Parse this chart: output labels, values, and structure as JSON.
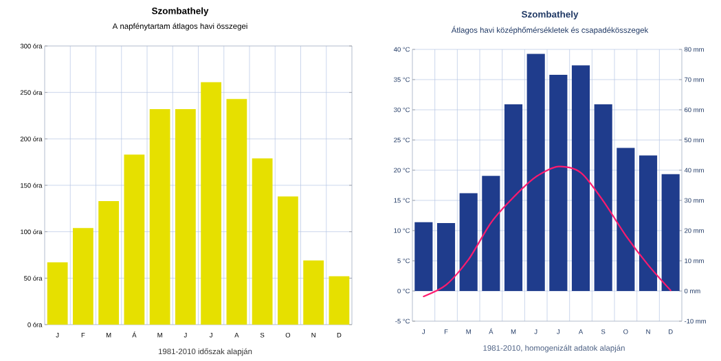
{
  "chart_data": [
    {
      "type": "bar",
      "title": "Szombathely",
      "subtitle": "A napfénytartam átlagos havi összegei",
      "categories": [
        "J",
        "F",
        "M",
        "Á",
        "M",
        "J",
        "J",
        "A",
        "S",
        "O",
        "N",
        "D"
      ],
      "values": [
        67,
        104,
        133,
        183,
        232,
        232,
        261,
        243,
        179,
        138,
        69,
        52
      ],
      "color": "#e6e000",
      "ylim": [
        0,
        300
      ],
      "yticks": [
        {
          "value": 0,
          "label": "0 óra"
        },
        {
          "value": 50,
          "label": "50 óra"
        },
        {
          "value": 100,
          "label": "100 óra"
        },
        {
          "value": 150,
          "label": "150 óra"
        },
        {
          "value": 200,
          "label": "200 óra"
        },
        {
          "value": 250,
          "label": "250 óra"
        },
        {
          "value": 300,
          "label": "300 óra"
        }
      ],
      "grid": true,
      "annotations": [
        "1981-2010 időszak alapján"
      ]
    },
    {
      "type": "bar",
      "title": "Szombathely",
      "subtitle": "Átlagos havi középhőmérsékletek és csapadékösszegek",
      "categories": [
        "J",
        "F",
        "M",
        "Á",
        "M",
        "J",
        "J",
        "A",
        "S",
        "O",
        "N",
        "D"
      ],
      "series": [
        {
          "type": "bar",
          "axis": "y2",
          "color": "#1f3c8c",
          "values": [
            22.8,
            22.5,
            32.4,
            38.1,
            61.8,
            78.5,
            71.6,
            74.7,
            61.8,
            47.4,
            44.9,
            38.7
          ]
        },
        {
          "type": "line",
          "color": "#ff1a6e",
          "values": [
            -0.9,
            1.0,
            5.2,
            11.3,
            15.5,
            18.9,
            20.6,
            19.6,
            14.9,
            9.2,
            4.3,
            0.1
          ]
        }
      ],
      "ylim": [
        -5,
        40
      ],
      "yticks": [
        {
          "value": -5,
          "label": "-5 °C"
        },
        {
          "value": 0,
          "label": "0 °C"
        },
        {
          "value": 5,
          "label": "5 °C"
        },
        {
          "value": 10,
          "label": "10 °C"
        },
        {
          "value": 15,
          "label": "15 °C"
        },
        {
          "value": 20,
          "label": "20 °C"
        },
        {
          "value": 25,
          "label": "25 °C"
        },
        {
          "value": 30,
          "label": "30 °C"
        },
        {
          "value": 35,
          "label": "35 °C"
        },
        {
          "value": 40,
          "label": "40 °C"
        }
      ],
      "y2lim": [
        -10,
        80
      ],
      "y2ticks": [
        {
          "value": -10,
          "label": "-10 mm"
        },
        {
          "value": 0,
          "label": "0 mm"
        },
        {
          "value": 10,
          "label": "10 mm"
        },
        {
          "value": 20,
          "label": "20 mm"
        },
        {
          "value": 30,
          "label": "30 mm"
        },
        {
          "value": 40,
          "label": "40 mm"
        },
        {
          "value": 50,
          "label": "50 mm"
        },
        {
          "value": 60,
          "label": "60 mm"
        },
        {
          "value": 70,
          "label": "70 mm"
        },
        {
          "value": 80,
          "label": "80 mm"
        }
      ],
      "grid": true,
      "annotations": [
        "1981-2010, homogenizált adatok alapján"
      ]
    }
  ]
}
